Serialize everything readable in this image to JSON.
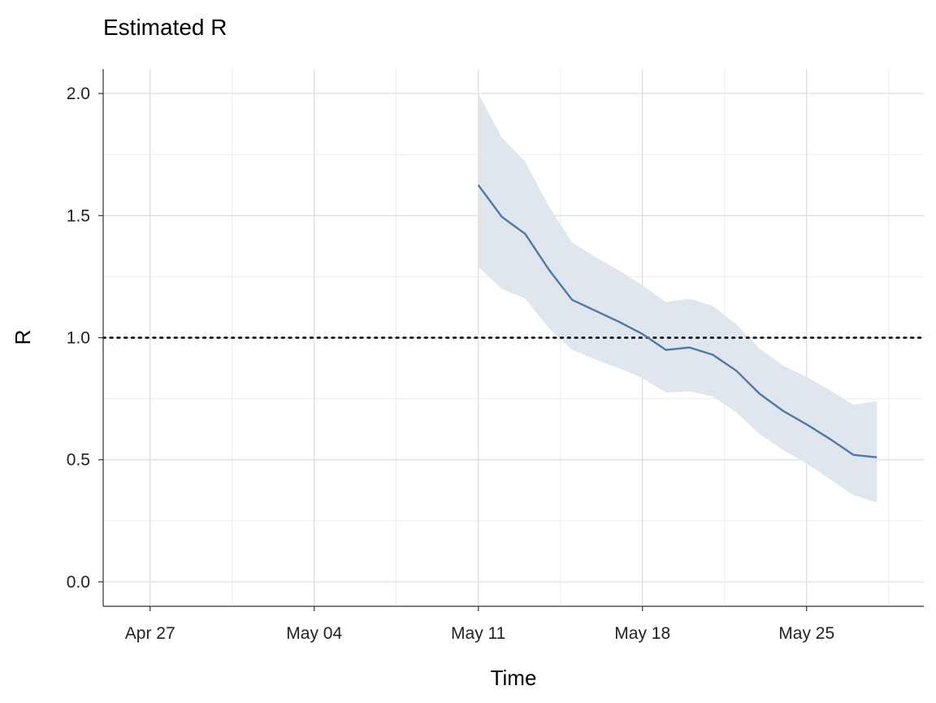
{
  "chart_data": {
    "type": "line",
    "title": "Estimated R",
    "xlabel": "Time",
    "ylabel": "R",
    "x_tick_labels": [
      "Apr 27",
      "May 04",
      "May 11",
      "May 18",
      "May 25"
    ],
    "x_ticks": [
      "2020-04-27",
      "2020-05-04",
      "2020-05-11",
      "2020-05-18",
      "2020-05-25"
    ],
    "y_tick_labels": [
      "0.0",
      "0.5",
      "1.0",
      "1.5",
      "2.0"
    ],
    "y_ticks": [
      0.0,
      0.5,
      1.0,
      1.5,
      2.0
    ],
    "ylim": [
      -0.1,
      2.1
    ],
    "xlim": [
      "2020-04-25",
      "2020-05-30"
    ],
    "grid": true,
    "reference_line": {
      "y": 1.0,
      "style": "dotted",
      "color": "#000000"
    },
    "series": [
      {
        "color": "#4f78a8",
        "band_color": "#dfe6ee",
        "points": [
          {
            "x": "2020-05-11",
            "y": 1.625,
            "lower": 1.29,
            "upper": 2.0
          },
          {
            "x": "2020-05-12",
            "y": 1.495,
            "lower": 1.2,
            "upper": 1.82
          },
          {
            "x": "2020-05-13",
            "y": 1.425,
            "lower": 1.16,
            "upper": 1.72
          },
          {
            "x": "2020-05-14",
            "y": 1.28,
            "lower": 1.04,
            "upper": 1.54
          },
          {
            "x": "2020-05-15",
            "y": 1.155,
            "lower": 0.95,
            "upper": 1.39
          },
          {
            "x": "2020-05-16",
            "y": 1.11,
            "lower": 0.91,
            "upper": 1.33
          },
          {
            "x": "2020-05-17",
            "y": 1.065,
            "lower": 0.875,
            "upper": 1.275
          },
          {
            "x": "2020-05-18",
            "y": 1.015,
            "lower": 0.835,
            "upper": 1.215
          },
          {
            "x": "2020-05-19",
            "y": 0.95,
            "lower": 0.775,
            "upper": 1.145
          },
          {
            "x": "2020-05-20",
            "y": 0.96,
            "lower": 0.78,
            "upper": 1.16
          },
          {
            "x": "2020-05-21",
            "y": 0.93,
            "lower": 0.76,
            "upper": 1.13
          },
          {
            "x": "2020-05-22",
            "y": 0.865,
            "lower": 0.695,
            "upper": 1.055
          },
          {
            "x": "2020-05-23",
            "y": 0.77,
            "lower": 0.605,
            "upper": 0.955
          },
          {
            "x": "2020-05-24",
            "y": 0.7,
            "lower": 0.54,
            "upper": 0.885
          },
          {
            "x": "2020-05-25",
            "y": 0.645,
            "lower": 0.485,
            "upper": 0.84
          },
          {
            "x": "2020-05-26",
            "y": 0.585,
            "lower": 0.42,
            "upper": 0.785
          },
          {
            "x": "2020-05-27",
            "y": 0.52,
            "lower": 0.355,
            "upper": 0.725
          },
          {
            "x": "2020-05-28",
            "y": 0.51,
            "lower": 0.325,
            "upper": 0.74
          }
        ]
      }
    ]
  }
}
